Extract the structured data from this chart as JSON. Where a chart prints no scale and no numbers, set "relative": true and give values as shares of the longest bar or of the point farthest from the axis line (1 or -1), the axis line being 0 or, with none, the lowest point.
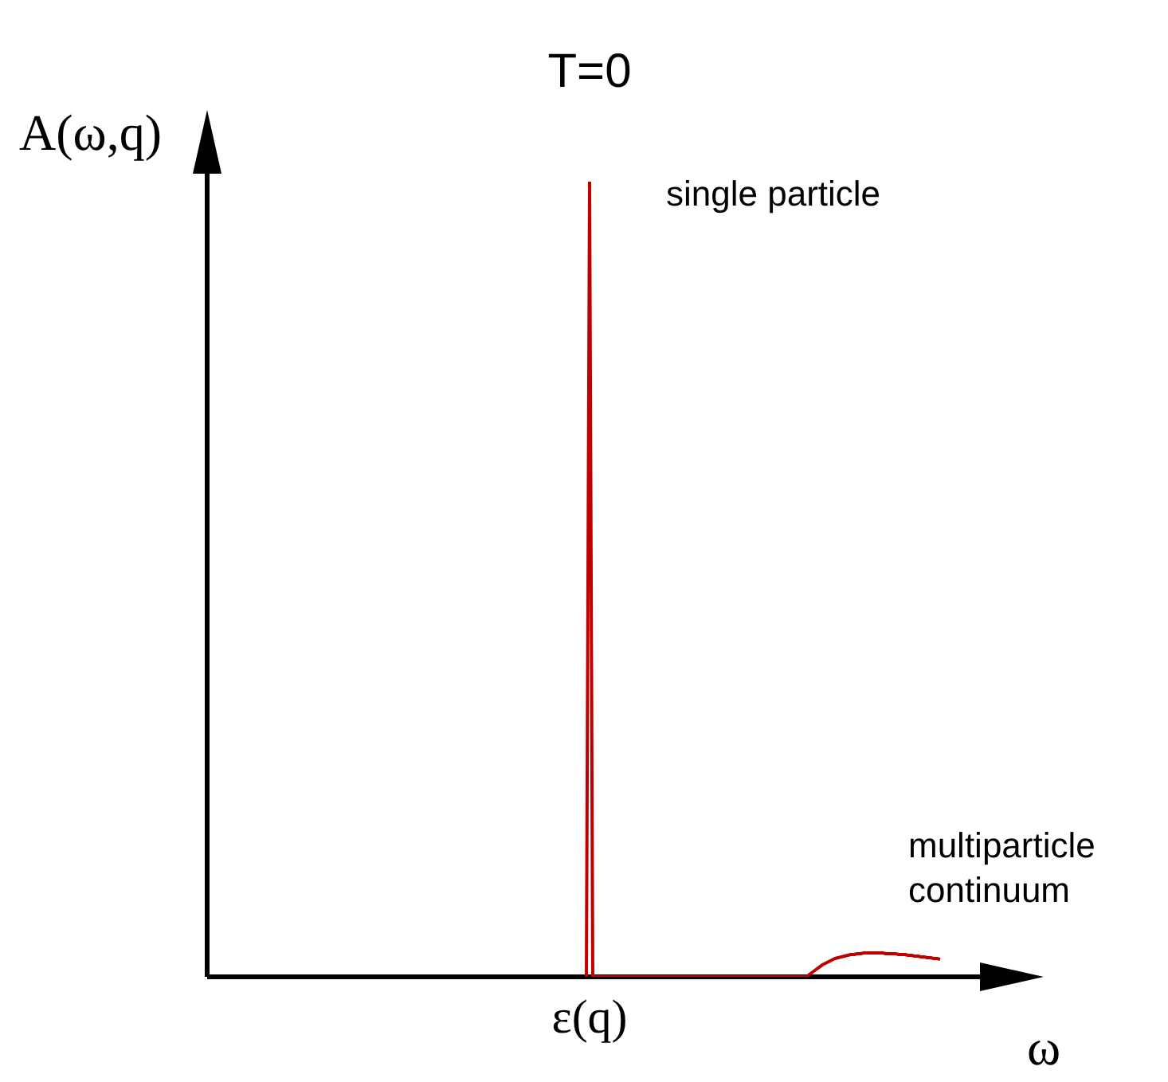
{
  "chart_data": {
    "type": "line",
    "title": "T=0",
    "ylabel": "A(ω,q)",
    "xlabel": "ω",
    "relative": true,
    "categories": [
      null,
      null,
      null,
      null,
      null,
      null,
      null,
      null,
      null,
      null,
      null,
      null,
      null,
      null,
      null,
      null,
      null,
      null,
      null,
      null,
      null,
      null,
      null,
      null,
      null,
      null,
      null,
      null,
      null,
      null,
      null,
      null,
      null,
      null,
      null,
      null,
      null,
      null,
      null,
      null,
      null,
      null,
      null,
      null,
      null,
      null,
      null,
      null,
      null,
      null,
      null,
      null,
      null,
      null,
      null,
      null,
      null,
      null,
      null,
      null,
      null,
      null,
      null,
      null,
      null,
      null,
      null,
      null,
      null,
      null,
      null,
      null,
      null,
      null,
      null,
      null,
      null,
      null,
      null,
      null,
      null,
      null,
      null,
      null,
      null,
      null,
      null,
      null,
      null,
      null,
      null,
      null,
      null,
      null,
      null,
      null,
      null,
      null,
      null,
      null,
      null,
      null,
      null,
      null,
      null,
      null,
      null,
      null,
      null,
      null,
      null,
      null,
      null,
      null,
      null,
      null,
      null,
      null,
      null,
      null,
      null,
      null,
      null,
      null,
      null,
      null,
      null,
      null,
      null,
      null,
      null,
      null,
      null,
      null,
      null,
      null,
      null,
      null,
      null,
      null,
      null,
      null,
      null,
      null,
      null,
      null,
      null,
      null,
      null,
      null,
      null,
      null,
      null,
      null,
      null,
      null,
      null,
      null,
      null,
      null,
      null,
      null,
      null,
      null,
      null,
      null,
      null,
      null,
      null,
      null,
      null,
      null,
      null,
      null,
      null,
      null,
      null,
      null,
      null,
      null,
      null,
      null,
      null,
      null,
      null,
      null,
      null,
      null,
      null,
      null,
      null,
      null,
      null,
      null,
      null,
      null,
      null,
      null,
      null,
      null,
      null,
      null,
      null,
      null,
      null,
      null,
      null,
      null,
      null,
      null,
      null,
      null,
      null,
      null,
      null,
      null,
      null,
      null,
      null,
      null,
      null,
      null,
      null,
      null,
      null,
      null,
      null,
      null,
      null,
      null,
      null,
      null,
      null,
      null,
      null,
      null,
      null,
      null,
      null,
      null,
      null
    ],
    "series": [
      {
        "color": "#c00000",
        "values": [
          null,
          null,
          null,
          null,
          null,
          null,
          null,
          null,
          null,
          null,
          null,
          null,
          null,
          null,
          null,
          null,
          null,
          null,
          null,
          null,
          null,
          null,
          null,
          null,
          null,
          null,
          null,
          null,
          null,
          null,
          null,
          null,
          null,
          null,
          null,
          null,
          null,
          null,
          null,
          null,
          null,
          null,
          null,
          null,
          null,
          null,
          null,
          null,
          null,
          null,
          null,
          null,
          null,
          null,
          null,
          null,
          null,
          null,
          null,
          null,
          null,
          null,
          null,
          null,
          null,
          null,
          null,
          null,
          null,
          null,
          null,
          null,
          null,
          null,
          null,
          null,
          null,
          null,
          null,
          null,
          null,
          null,
          null,
          null,
          null,
          null,
          null,
          null,
          null,
          null,
          null,
          null,
          null,
          null,
          null,
          null,
          null,
          null,
          null,
          null,
          null,
          null,
          null,
          null,
          null,
          null,
          null,
          null,
          null,
          null,
          null,
          null,
          null,
          null,
          null,
          null,
          null,
          null,
          null,
          0,
          1,
          0,
          0,
          0,
          0,
          0,
          0,
          0,
          0,
          0,
          0,
          0,
          0,
          0,
          0,
          0,
          0,
          0,
          0,
          0,
          0,
          0,
          0,
          0,
          0,
          0,
          0,
          0,
          0,
          0,
          0,
          0,
          0,
          0,
          0,
          0,
          0,
          0,
          0,
          0,
          0,
          0,
          0,
          0,
          0,
          0,
          0,
          0,
          0,
          0,
          0,
          0,
          0,
          0,
          0,
          0,
          0,
          0,
          0,
          0,
          0,
          0,
          0,
          0,
          0,
          0,
          0,
          0,
          0,
          0.003,
          0.006,
          0.009,
          0.012,
          0.015,
          0.017,
          0.019,
          0.021,
          0.023,
          0.024,
          0.025,
          0.026,
          0.027,
          0.028,
          0.028,
          0.029,
          0.029,
          0.03,
          0.03,
          0.03,
          0.03,
          0.03,
          0.03,
          0.03,
          0.029,
          0.029,
          0.029,
          0.029,
          0.028,
          0.028,
          0.028,
          0.027,
          0.027,
          0.026,
          0.026,
          0.025,
          0.025,
          0.024,
          0.024,
          0.023,
          0.023,
          0.022,
          null,
          null,
          null,
          null,
          null,
          null,
          null,
          null,
          null,
          null
        ]
      }
    ],
    "annotations": [
      "ε(q)",
      "single particle",
      "multiparticle\ncontinuum"
    ]
  }
}
